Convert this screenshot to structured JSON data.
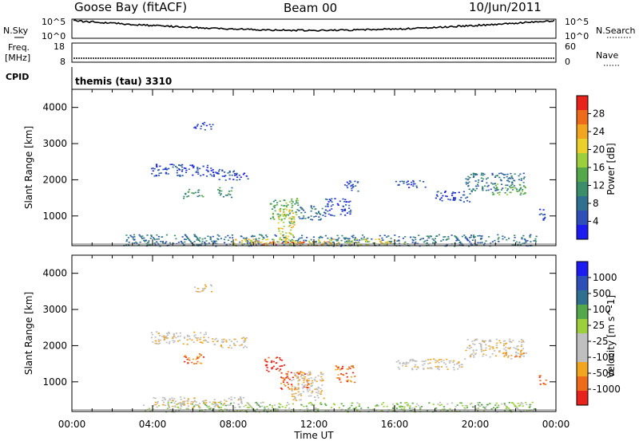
{
  "header": {
    "station": "Goose Bay (fitACF)",
    "beam": "Beam 00",
    "date": "10/Jun/2011"
  },
  "top_panels": {
    "nsky_label": "N.Sky",
    "nsky_ticks": [
      "10^5",
      "10^0"
    ],
    "nsearch_label": "N.Search",
    "nsearch_ticks": [
      "10^5",
      "10^0"
    ],
    "freq_label": "Freq.",
    "freq_unit": "[MHz]",
    "freq_ticks": [
      "18",
      "8"
    ],
    "nave_label": "Nave",
    "nave_ticks": [
      "60",
      "0"
    ],
    "cpid_label": "CPID",
    "cpid_text": "themis (tau) 3310"
  },
  "colors": {
    "power": [
      "#1b1bf2",
      "#2e4fb8",
      "#2f6f8f",
      "#3a8f6a",
      "#55a84a",
      "#9ccf3c",
      "#e9d12a",
      "#f2a51f",
      "#ee6b1c",
      "#e8231b"
    ],
    "velocity": [
      "#e8231b",
      "#ee6b1c",
      "#f2a51f",
      "#bfbfbf",
      "#bfbfbf",
      "#9ccf3c",
      "#55a84a",
      "#2f6f8f",
      "#2e4fb8",
      "#1b1bf2"
    ]
  },
  "chart_data": [
    {
      "type": "heatmap",
      "title": "",
      "ylabel": "Slant Range [km]",
      "xlabel": "",
      "colorbar_label": "Power [dB]",
      "colorbar_ticks": [
        "28",
        "24",
        "20",
        "16",
        "12",
        "8",
        "4"
      ],
      "colorbar_range": [
        0,
        30
      ],
      "y_ticks": [
        "4000",
        "3000",
        "2000",
        "1000"
      ],
      "ylim": [
        180,
        4500
      ],
      "xlim_hours": [
        0,
        24
      ],
      "patches": [
        {
          "t0": 3.9,
          "t1": 7.0,
          "r0": 2100,
          "r1": 2450,
          "level": 1
        },
        {
          "t0": 7.0,
          "t1": 8.7,
          "r0": 2000,
          "r1": 2300,
          "level": 1
        },
        {
          "t0": 5.5,
          "t1": 6.5,
          "r0": 1500,
          "r1": 1750,
          "level": 3
        },
        {
          "t0": 7.2,
          "t1": 7.9,
          "r0": 1500,
          "r1": 1800,
          "level": 3
        },
        {
          "t0": 9.8,
          "t1": 11.2,
          "r0": 800,
          "r1": 1500,
          "level": 4
        },
        {
          "t0": 10.2,
          "t1": 11.0,
          "r0": 300,
          "r1": 1200,
          "level": 6
        },
        {
          "t0": 11.2,
          "t1": 12.5,
          "r0": 900,
          "r1": 1300,
          "level": 2
        },
        {
          "t0": 12.5,
          "t1": 13.8,
          "r0": 1000,
          "r1": 1500,
          "level": 1
        },
        {
          "t0": 13.5,
          "t1": 14.3,
          "r0": 1700,
          "r1": 2000,
          "level": 1
        },
        {
          "t0": 16.0,
          "t1": 17.5,
          "r0": 1800,
          "r1": 2000,
          "level": 1
        },
        {
          "t0": 18.0,
          "t1": 19.8,
          "r0": 1400,
          "r1": 1700,
          "level": 1
        },
        {
          "t0": 19.5,
          "t1": 22.4,
          "r0": 1700,
          "r1": 2200,
          "level": 2
        },
        {
          "t0": 20.8,
          "t1": 22.5,
          "r0": 1600,
          "r1": 1900,
          "level": 4
        },
        {
          "t0": 23.1,
          "t1": 23.5,
          "r0": 900,
          "r1": 1200,
          "level": 1
        },
        {
          "t0": 2.5,
          "t1": 23.0,
          "r0": 180,
          "r1": 500,
          "level": 2
        },
        {
          "t0": 8.0,
          "t1": 16.5,
          "r0": 200,
          "r1": 380,
          "level": 6
        },
        {
          "t0": 9.0,
          "t1": 13.0,
          "r0": 200,
          "r1": 300,
          "level": 8
        },
        {
          "t0": 6.0,
          "t1": 7.0,
          "r0": 3400,
          "r1": 3600,
          "level": 1
        }
      ]
    },
    {
      "type": "heatmap",
      "title": "",
      "ylabel": "Slant Range [km]",
      "xlabel": "Time UT",
      "colorbar_label": "Velocity [m s^-1]",
      "colorbar_ticks": [
        "1000",
        "500",
        "100",
        "25",
        "-25",
        "-100",
        "-500",
        "-1000"
      ],
      "y_ticks": [
        "4000",
        "3000",
        "2000",
        "1000"
      ],
      "x_ticks": [
        "00:00",
        "04:00",
        "08:00",
        "12:00",
        "16:00",
        "20:00",
        "00:00"
      ],
      "ylim": [
        180,
        4500
      ],
      "xlim_hours": [
        0,
        24
      ],
      "patches": [
        {
          "t0": 3.9,
          "t1": 7.0,
          "r0": 2050,
          "r1": 2400,
          "level": 3
        },
        {
          "t0": 7.0,
          "t1": 8.7,
          "r0": 1950,
          "r1": 2250,
          "level": 3
        },
        {
          "t0": 5.5,
          "t1": 6.5,
          "r0": 1500,
          "r1": 1800,
          "level": 1
        },
        {
          "t0": 9.5,
          "t1": 10.5,
          "r0": 1300,
          "r1": 1700,
          "level": 0
        },
        {
          "t0": 10.3,
          "t1": 11.8,
          "r0": 800,
          "r1": 1300,
          "level": 1
        },
        {
          "t0": 10.8,
          "t1": 12.5,
          "r0": 500,
          "r1": 1300,
          "level": 3
        },
        {
          "t0": 13.0,
          "t1": 14.0,
          "r0": 1000,
          "r1": 1500,
          "level": 1
        },
        {
          "t0": 16.0,
          "t1": 19.5,
          "r0": 1350,
          "r1": 1650,
          "level": 3
        },
        {
          "t0": 19.5,
          "t1": 22.5,
          "r0": 1700,
          "r1": 2200,
          "level": 3
        },
        {
          "t0": 21.3,
          "t1": 22.4,
          "r0": 1650,
          "r1": 1850,
          "level": 2
        },
        {
          "t0": 23.1,
          "t1": 23.5,
          "r0": 900,
          "r1": 1200,
          "level": 1
        },
        {
          "t0": 3.5,
          "t1": 23.0,
          "r0": 180,
          "r1": 450,
          "level": 5
        },
        {
          "t0": 4.0,
          "t1": 8.5,
          "r0": 300,
          "r1": 600,
          "level": 3
        },
        {
          "t0": 6.0,
          "t1": 7.0,
          "r0": 3500,
          "r1": 3700,
          "level": 3
        }
      ]
    }
  ]
}
